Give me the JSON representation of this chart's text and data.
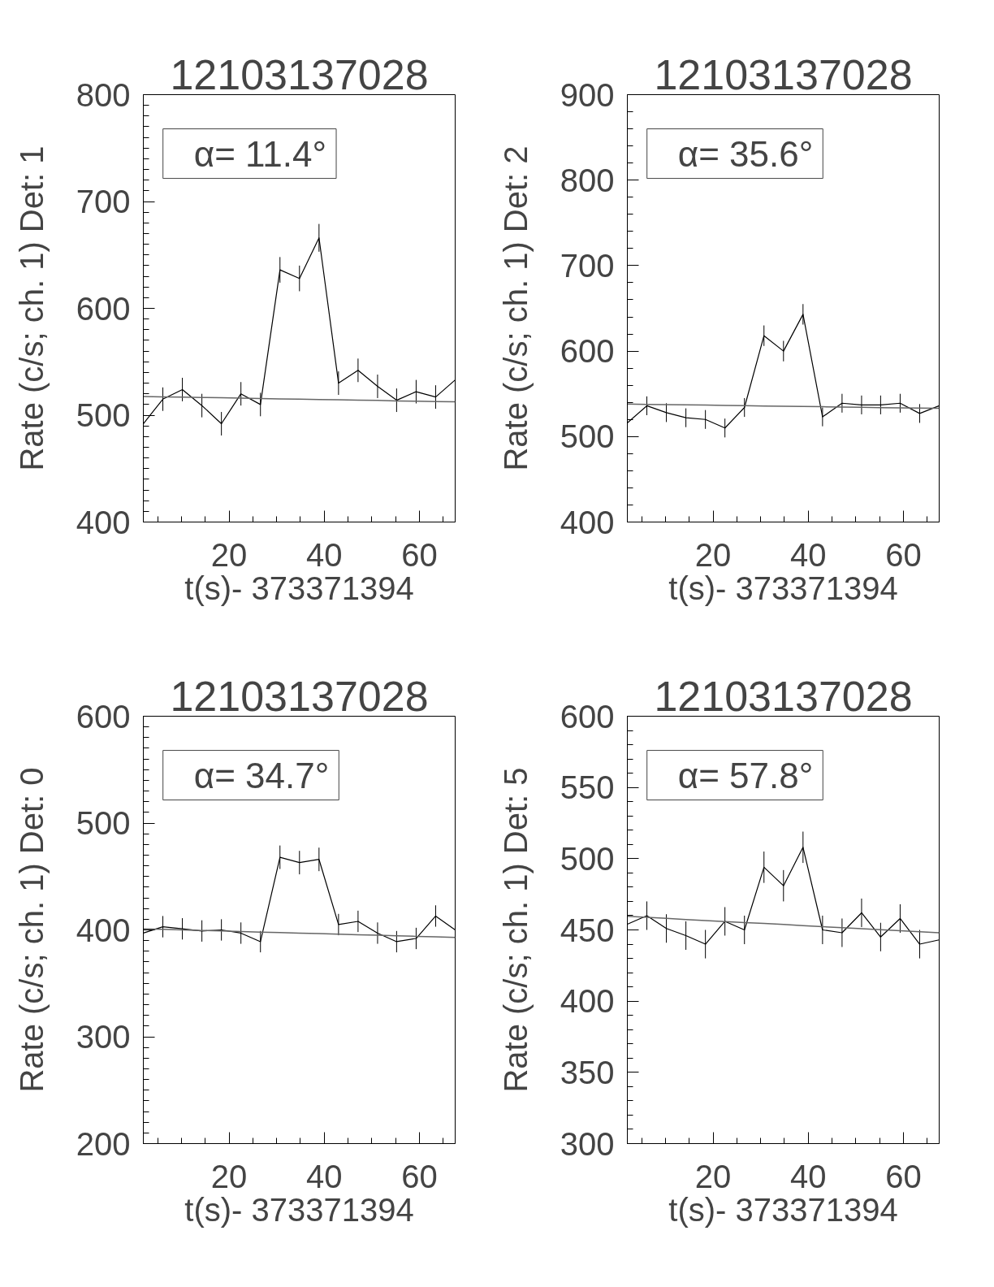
{
  "chart_data": [
    {
      "type": "line",
      "title": "12103137028",
      "xlabel": "t(s)- 373371394",
      "ylabel": "Rate (c/s; ch. 1) Det: 1",
      "annotations": [
        "α= 11.4°"
      ],
      "grid": false,
      "x": [
        2.0,
        6.1,
        10.2,
        14.3,
        18.4,
        22.5,
        26.6,
        30.7,
        34.8,
        38.9,
        43.0,
        47.1,
        51.2,
        55.2,
        59.3,
        63.4,
        67.5
      ],
      "xlim": [
        2.0,
        67.5
      ],
      "xticks": [
        {
          "value": 5,
          "label": null
        },
        {
          "value": 10,
          "label": null
        },
        {
          "value": 15,
          "label": null
        },
        20,
        {
          "value": 25,
          "label": null
        },
        {
          "value": 30,
          "label": null
        },
        {
          "value": 35,
          "label": null
        },
        40,
        {
          "value": 45,
          "label": null
        },
        {
          "value": 50,
          "label": null
        },
        {
          "value": 55,
          "label": null
        },
        60,
        {
          "value": 65,
          "label": null
        }
      ],
      "ylim": [
        400,
        800
      ],
      "yticks": [
        400,
        {
          "value": 410,
          "label": null
        },
        {
          "value": 420,
          "label": null
        },
        {
          "value": 430,
          "label": null
        },
        {
          "value": 440,
          "label": null
        },
        {
          "value": 450,
          "label": null
        },
        {
          "value": 460,
          "label": null
        },
        {
          "value": 470,
          "label": null
        },
        {
          "value": 480,
          "label": null
        },
        {
          "value": 490,
          "label": null
        },
        500,
        {
          "value": 510,
          "label": null
        },
        {
          "value": 520,
          "label": null
        },
        {
          "value": 530,
          "label": null
        },
        {
          "value": 540,
          "label": null
        },
        {
          "value": 550,
          "label": null
        },
        {
          "value": 560,
          "label": null
        },
        {
          "value": 570,
          "label": null
        },
        {
          "value": 580,
          "label": null
        },
        {
          "value": 590,
          "label": null
        },
        600,
        {
          "value": 610,
          "label": null
        },
        {
          "value": 620,
          "label": null
        },
        {
          "value": 630,
          "label": null
        },
        {
          "value": 640,
          "label": null
        },
        {
          "value": 650,
          "label": null
        },
        {
          "value": 660,
          "label": null
        },
        {
          "value": 670,
          "label": null
        },
        {
          "value": 680,
          "label": null
        },
        {
          "value": 690,
          "label": null
        },
        700,
        {
          "value": 710,
          "label": null
        },
        {
          "value": 720,
          "label": null
        },
        {
          "value": 730,
          "label": null
        },
        {
          "value": 740,
          "label": null
        },
        {
          "value": 750,
          "label": null
        },
        {
          "value": 760,
          "label": null
        },
        {
          "value": 770,
          "label": null
        },
        {
          "value": 780,
          "label": null
        },
        {
          "value": 790,
          "label": null
        },
        800
      ],
      "series": [
        {
          "color": "#000000",
          "values": [
            492,
            515,
            524,
            509,
            492,
            520,
            510,
            636,
            628,
            666,
            530,
            542,
            527,
            514,
            522,
            517,
            533
          ],
          "errors": [
            null,
            11,
            11,
            11,
            11,
            11,
            11,
            12,
            12,
            13,
            11,
            11,
            11,
            11,
            11,
            11,
            null
          ]
        },
        {
          "type": "line",
          "color": "#666666",
          "values": [
            517.5,
            517.2,
            516.9,
            516.6,
            516.3,
            515.9,
            515.6,
            515.3,
            515.0,
            514.7,
            514.4,
            514.1,
            513.8,
            513.4,
            513.1,
            512.8,
            512.5
          ]
        }
      ]
    },
    {
      "type": "line",
      "title": "12103137028",
      "xlabel": "t(s)- 373371394",
      "ylabel": "Rate (c/s; ch. 1) Det: 2",
      "annotations": [
        "α= 35.6°"
      ],
      "grid": false,
      "x": [
        2.0,
        6.1,
        10.2,
        14.3,
        18.4,
        22.5,
        26.6,
        30.7,
        34.8,
        38.9,
        43.0,
        47.1,
        51.2,
        55.2,
        59.3,
        63.4,
        67.5
      ],
      "xlim": [
        2.0,
        67.5
      ],
      "xticks": [
        {
          "value": 5,
          "label": null
        },
        {
          "value": 10,
          "label": null
        },
        {
          "value": 15,
          "label": null
        },
        20,
        {
          "value": 25,
          "label": null
        },
        {
          "value": 30,
          "label": null
        },
        {
          "value": 35,
          "label": null
        },
        40,
        {
          "value": 45,
          "label": null
        },
        {
          "value": 50,
          "label": null
        },
        {
          "value": 55,
          "label": null
        },
        60,
        {
          "value": 65,
          "label": null
        }
      ],
      "ylim": [
        400,
        900
      ],
      "yticks": [
        400,
        {
          "value": 420,
          "label": null
        },
        {
          "value": 440,
          "label": null
        },
        {
          "value": 460,
          "label": null
        },
        {
          "value": 480,
          "label": null
        },
        500,
        {
          "value": 520,
          "label": null
        },
        {
          "value": 540,
          "label": null
        },
        {
          "value": 560,
          "label": null
        },
        {
          "value": 580,
          "label": null
        },
        600,
        {
          "value": 620,
          "label": null
        },
        {
          "value": 640,
          "label": null
        },
        {
          "value": 660,
          "label": null
        },
        {
          "value": 680,
          "label": null
        },
        700,
        {
          "value": 720,
          "label": null
        },
        {
          "value": 740,
          "label": null
        },
        {
          "value": 760,
          "label": null
        },
        {
          "value": 780,
          "label": null
        },
        800,
        {
          "value": 820,
          "label": null
        },
        {
          "value": 840,
          "label": null
        },
        {
          "value": 860,
          "label": null
        },
        {
          "value": 880,
          "label": null
        },
        900
      ],
      "series": [
        {
          "color": "#000000",
          "values": [
            516,
            536,
            528,
            522,
            520,
            510,
            534,
            618,
            600,
            643,
            523,
            539,
            537,
            537,
            539,
            527,
            536
          ],
          "errors": [
            null,
            11,
            11,
            11,
            11,
            11,
            11,
            12,
            12,
            12,
            11,
            11,
            11,
            11,
            11,
            11,
            null
          ]
        },
        {
          "type": "line",
          "color": "#666666",
          "values": [
            538.0,
            537.7,
            537.4,
            537.1,
            536.8,
            536.4,
            536.1,
            535.8,
            535.5,
            535.2,
            534.9,
            534.6,
            534.3,
            533.9,
            533.6,
            533.3,
            533.0
          ]
        }
      ]
    },
    {
      "type": "line",
      "title": "12103137028",
      "xlabel": "t(s)- 373371394",
      "ylabel": "Rate (c/s; ch. 1) Det: 0",
      "annotations": [
        "α= 34.7°"
      ],
      "grid": false,
      "x": [
        2.0,
        6.1,
        10.2,
        14.3,
        18.4,
        22.5,
        26.6,
        30.7,
        34.8,
        38.9,
        43.0,
        47.1,
        51.2,
        55.2,
        59.3,
        63.4,
        67.5
      ],
      "xlim": [
        2.0,
        67.5
      ],
      "xticks": [
        {
          "value": 5,
          "label": null
        },
        {
          "value": 10,
          "label": null
        },
        {
          "value": 15,
          "label": null
        },
        20,
        {
          "value": 25,
          "label": null
        },
        {
          "value": 30,
          "label": null
        },
        {
          "value": 35,
          "label": null
        },
        40,
        {
          "value": 45,
          "label": null
        },
        {
          "value": 50,
          "label": null
        },
        {
          "value": 55,
          "label": null
        },
        60,
        {
          "value": 65,
          "label": null
        }
      ],
      "ylim": [
        200,
        600
      ],
      "yticks": [
        200,
        {
          "value": 210,
          "label": null
        },
        {
          "value": 220,
          "label": null
        },
        {
          "value": 230,
          "label": null
        },
        {
          "value": 240,
          "label": null
        },
        {
          "value": 250,
          "label": null
        },
        {
          "value": 260,
          "label": null
        },
        {
          "value": 270,
          "label": null
        },
        {
          "value": 280,
          "label": null
        },
        {
          "value": 290,
          "label": null
        },
        300,
        {
          "value": 310,
          "label": null
        },
        {
          "value": 320,
          "label": null
        },
        {
          "value": 330,
          "label": null
        },
        {
          "value": 340,
          "label": null
        },
        {
          "value": 350,
          "label": null
        },
        {
          "value": 360,
          "label": null
        },
        {
          "value": 370,
          "label": null
        },
        {
          "value": 380,
          "label": null
        },
        {
          "value": 390,
          "label": null
        },
        400,
        {
          "value": 410,
          "label": null
        },
        {
          "value": 420,
          "label": null
        },
        {
          "value": 430,
          "label": null
        },
        {
          "value": 440,
          "label": null
        },
        {
          "value": 450,
          "label": null
        },
        {
          "value": 460,
          "label": null
        },
        {
          "value": 470,
          "label": null
        },
        {
          "value": 480,
          "label": null
        },
        {
          "value": 490,
          "label": null
        },
        500,
        {
          "value": 510,
          "label": null
        },
        {
          "value": 520,
          "label": null
        },
        {
          "value": 530,
          "label": null
        },
        {
          "value": 540,
          "label": null
        },
        {
          "value": 550,
          "label": null
        },
        {
          "value": 560,
          "label": null
        },
        {
          "value": 570,
          "label": null
        },
        {
          "value": 580,
          "label": null
        },
        {
          "value": 590,
          "label": null
        },
        600
      ],
      "series": [
        {
          "color": "#000000",
          "values": [
            397,
            403,
            401,
            399,
            400,
            397,
            389,
            468,
            463,
            466,
            405,
            408,
            397,
            389,
            392,
            413,
            400
          ],
          "errors": [
            null,
            10,
            10,
            10,
            10,
            10,
            10,
            11,
            11,
            11,
            10,
            10,
            10,
            10,
            10,
            10,
            null
          ]
        },
        {
          "type": "line",
          "color": "#666666",
          "values": [
            401.0,
            400.5,
            400.0,
            399.5,
            399.0,
            398.5,
            398.0,
            397.5,
            397.0,
            396.5,
            396.0,
            395.5,
            395.0,
            394.5,
            394.0,
            393.5,
            393.0
          ]
        }
      ]
    },
    {
      "type": "line",
      "title": "12103137028",
      "xlabel": "t(s)- 373371394",
      "ylabel": "Rate (c/s; ch. 1) Det: 5",
      "annotations": [
        "α= 57.8°"
      ],
      "grid": false,
      "x": [
        2.0,
        6.1,
        10.2,
        14.3,
        18.4,
        22.5,
        26.6,
        30.7,
        34.8,
        38.9,
        43.0,
        47.1,
        51.2,
        55.2,
        59.3,
        63.4,
        67.5
      ],
      "xlim": [
        2.0,
        67.5
      ],
      "xticks": [
        {
          "value": 5,
          "label": null
        },
        {
          "value": 10,
          "label": null
        },
        {
          "value": 15,
          "label": null
        },
        20,
        {
          "value": 25,
          "label": null
        },
        {
          "value": 30,
          "label": null
        },
        {
          "value": 35,
          "label": null
        },
        40,
        {
          "value": 45,
          "label": null
        },
        {
          "value": 50,
          "label": null
        },
        {
          "value": 55,
          "label": null
        },
        60,
        {
          "value": 65,
          "label": null
        }
      ],
      "ylim": [
        300,
        600
      ],
      "yticks": [
        300,
        {
          "value": 310,
          "label": null
        },
        {
          "value": 320,
          "label": null
        },
        {
          "value": 330,
          "label": null
        },
        {
          "value": 340,
          "label": null
        },
        350,
        {
          "value": 360,
          "label": null
        },
        {
          "value": 370,
          "label": null
        },
        {
          "value": 380,
          "label": null
        },
        {
          "value": 390,
          "label": null
        },
        400,
        {
          "value": 410,
          "label": null
        },
        {
          "value": 420,
          "label": null
        },
        {
          "value": 430,
          "label": null
        },
        {
          "value": 440,
          "label": null
        },
        450,
        {
          "value": 460,
          "label": null
        },
        {
          "value": 470,
          "label": null
        },
        {
          "value": 480,
          "label": null
        },
        {
          "value": 490,
          "label": null
        },
        500,
        {
          "value": 510,
          "label": null
        },
        {
          "value": 520,
          "label": null
        },
        {
          "value": 530,
          "label": null
        },
        {
          "value": 540,
          "label": null
        },
        550,
        {
          "value": 560,
          "label": null
        },
        {
          "value": 570,
          "label": null
        },
        {
          "value": 580,
          "label": null
        },
        {
          "value": 590,
          "label": null
        },
        600
      ],
      "series": [
        {
          "color": "#000000",
          "values": [
            454,
            460,
            451,
            446,
            440,
            456,
            450,
            494,
            481,
            508,
            450,
            448,
            462,
            445,
            458,
            440,
            443
          ],
          "errors": [
            null,
            10,
            10,
            10,
            10,
            10,
            10,
            11,
            11,
            11,
            10,
            10,
            10,
            10,
            10,
            10,
            null
          ]
        },
        {
          "type": "line",
          "color": "#666666",
          "values": [
            459.5,
            458.8,
            458.1,
            457.3,
            456.6,
            455.9,
            455.2,
            454.5,
            453.8,
            453.0,
            452.3,
            451.6,
            450.9,
            450.2,
            449.4,
            448.7,
            448.0
          ]
        }
      ]
    }
  ]
}
